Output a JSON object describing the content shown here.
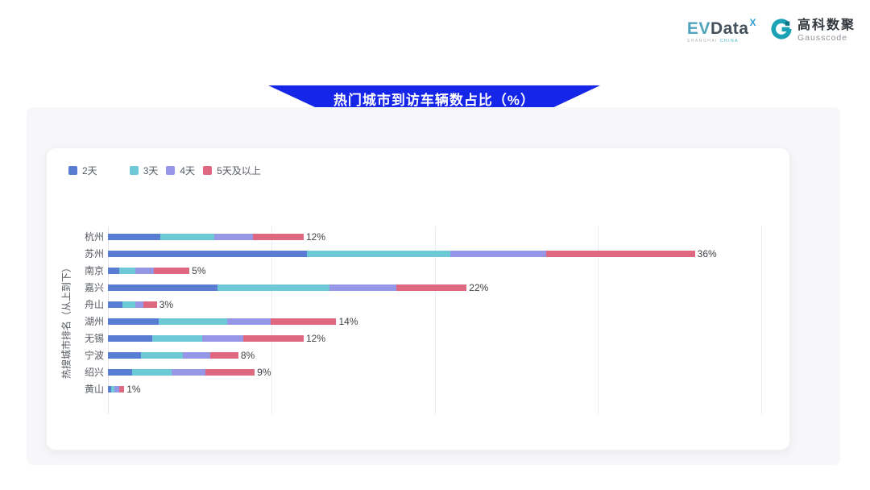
{
  "header": {
    "evdata": {
      "ev": "EV",
      "data": "Data",
      "sup": "X",
      "shanghai": "SHANGHAI",
      "china": "CHINA"
    },
    "gausscode": {
      "cn": "高科数聚",
      "en": "Gausscode"
    }
  },
  "banner": {
    "title": "热门城市到访车辆数占比（%）",
    "color": "#1526e8"
  },
  "chart_data": {
    "type": "bar",
    "orientation": "horizontal",
    "stacked": true,
    "title": "热门城市到访车辆数占比（%）",
    "ylabel": "热搜城市排名（从上到下）",
    "xlabel": "",
    "xlim": [
      0,
      41
    ],
    "gridlines_at": [
      10,
      20,
      30,
      40
    ],
    "grid": true,
    "legend_position": "top-left",
    "categories": [
      "杭州",
      "苏州",
      "南京",
      "嘉兴",
      "舟山",
      "湖州",
      "无锡",
      "宁波",
      "绍兴",
      "黄山"
    ],
    "series": [
      {
        "name": "2天",
        "color": "#587dd2",
        "values": [
          3.2,
          12.2,
          0.7,
          6.7,
          0.9,
          3.1,
          2.7,
          2.0,
          1.5,
          0.2
        ]
      },
      {
        "name": "3天",
        "color": "#6cc9d5",
        "values": [
          3.3,
          8.8,
          1.0,
          6.9,
          0.8,
          4.2,
          3.1,
          2.6,
          2.4,
          0.2
        ]
      },
      {
        "name": "4天",
        "color": "#9597e6",
        "values": [
          2.4,
          5.9,
          1.1,
          4.1,
          0.5,
          2.7,
          2.5,
          1.7,
          2.1,
          0.3
        ]
      },
      {
        "name": "5天及以上",
        "color": "#dd6880",
        "values": [
          3.1,
          9.1,
          2.2,
          4.3,
          0.8,
          4.0,
          3.7,
          1.7,
          3.0,
          0.3
        ]
      }
    ],
    "totals_labels": [
      "12%",
      "36%",
      "5%",
      "22%",
      "3%",
      "14%",
      "12%",
      "8%",
      "9%",
      "1%"
    ]
  }
}
